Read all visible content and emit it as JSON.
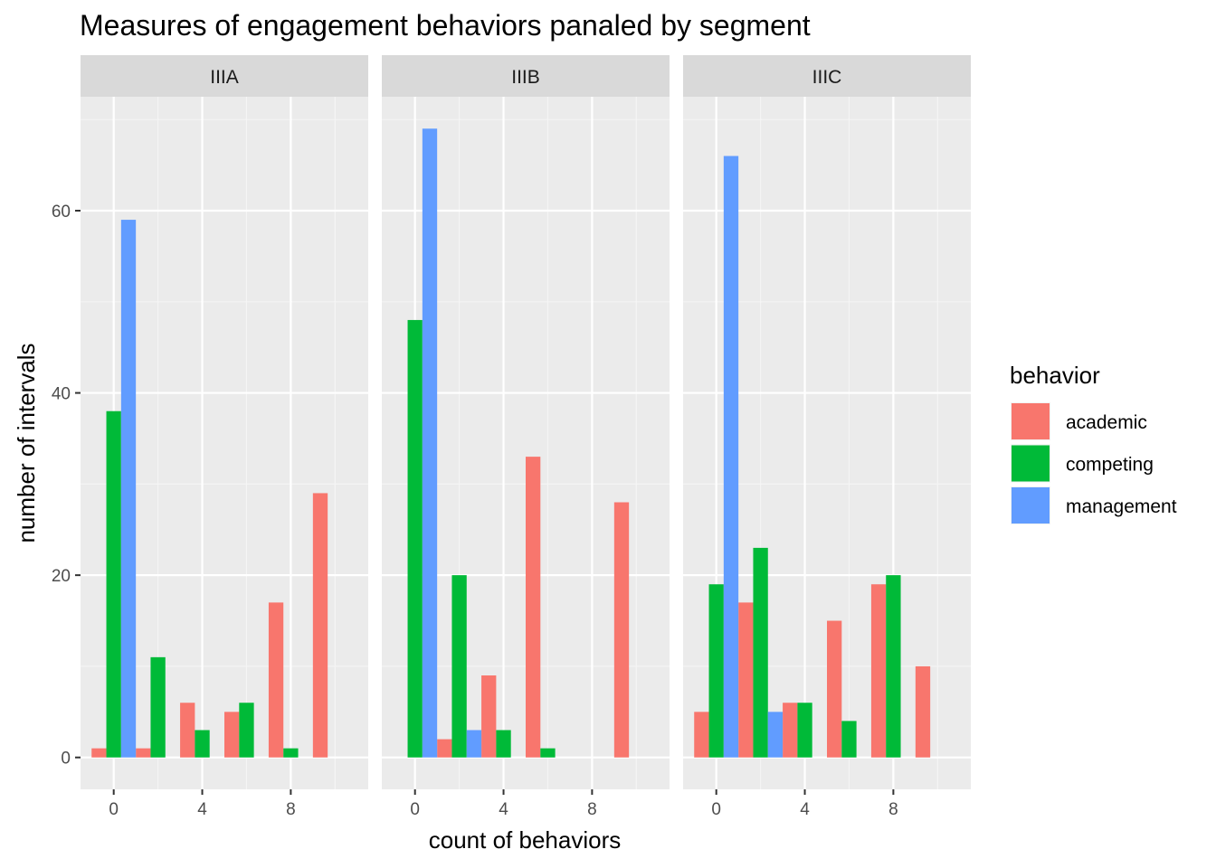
{
  "chart_data": {
    "type": "bar",
    "title": "Measures of engagement behaviors panaled by segment",
    "xlabel": "count of behaviors",
    "ylabel": "number of intervals",
    "x_ticks": [
      "0",
      "4",
      "8"
    ],
    "y_ticks": [
      "0",
      "20",
      "40",
      "60"
    ],
    "xlim": [
      -1.5,
      11.5
    ],
    "ylim": [
      -3.5,
      72.5
    ],
    "grid": true,
    "legend": {
      "title": "behavior",
      "position": "right",
      "entries": [
        "academic",
        "competing",
        "management"
      ]
    },
    "colors": {
      "academic": "#F8766D",
      "competing": "#00BA38",
      "management": "#619CFF"
    },
    "bin_width": 2,
    "panels": [
      {
        "name": "IIIA",
        "series": [
          {
            "name": "academic",
            "bins": [
              0,
              2,
              4,
              6,
              8,
              10
            ],
            "values": [
              1,
              1,
              6,
              5,
              17,
              29
            ]
          },
          {
            "name": "competing",
            "bins": [
              0,
              2,
              4,
              6,
              8
            ],
            "values": [
              38,
              11,
              3,
              6,
              1
            ]
          },
          {
            "name": "management",
            "bins": [
              0
            ],
            "values": [
              59
            ]
          }
        ]
      },
      {
        "name": "IIIB",
        "series": [
          {
            "name": "academic",
            "bins": [
              2,
              4,
              6,
              8,
              10
            ],
            "values": [
              2,
              9,
              33,
              0,
              28
            ]
          },
          {
            "name": "competing",
            "bins": [
              0,
              2,
              4,
              6
            ],
            "values": [
              48,
              20,
              3,
              1
            ]
          },
          {
            "name": "management",
            "bins": [
              0,
              2
            ],
            "values": [
              69,
              3
            ]
          }
        ]
      },
      {
        "name": "IIIC",
        "series": [
          {
            "name": "academic",
            "bins": [
              0,
              2,
              4,
              6,
              8,
              10
            ],
            "values": [
              5,
              17,
              6,
              15,
              19,
              10
            ]
          },
          {
            "name": "competing",
            "bins": [
              0,
              2,
              4,
              6,
              8
            ],
            "values": [
              19,
              23,
              6,
              4,
              20
            ]
          },
          {
            "name": "management",
            "bins": [
              0,
              2
            ],
            "values": [
              66,
              5
            ]
          }
        ]
      }
    ]
  }
}
